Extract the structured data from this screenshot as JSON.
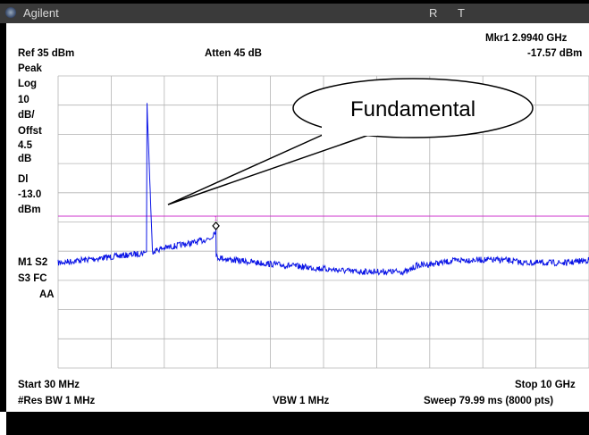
{
  "titlebar": {
    "app_name": "Agilent",
    "indicator_r": "R",
    "indicator_t": "T"
  },
  "header": {
    "marker_label": "Mkr1  2.9940 GHz",
    "marker_value": "-17.57 dBm",
    "ref_level": "Ref 35 dBm",
    "attenuation": "Atten 45 dB"
  },
  "left_panel": {
    "detector": "Peak",
    "scale_type": "Log",
    "scale_value": "10",
    "scale_unit": "dB/",
    "offset_label": "Offst",
    "offset_value": "4.5",
    "offset_unit": "dB",
    "display_line_label": "Dl",
    "display_line_value": "-13.0",
    "display_line_unit": "dBm",
    "trace_row1": "M1  S2",
    "trace_row2": "S3  FC",
    "trace_row3": "AA"
  },
  "footer": {
    "start": "Start 30 MHz",
    "stop": "Stop 10 GHz",
    "res_bw": "#Res BW 1 MHz",
    "vbw": "VBW 1 MHz",
    "sweep": "Sweep 79.99 ms (8000 pts)"
  },
  "annotation": {
    "callout_text": "Fundamental"
  },
  "marker": {
    "number": "1"
  },
  "colors": {
    "trace": "#0a14e6",
    "display_line": "#cc33cc",
    "grid": "#b4b4b4",
    "titlebar": "#3a3a3a"
  },
  "chart_data": {
    "type": "line",
    "x_unit": "GHz",
    "y_unit": "dBm",
    "x_range": [
      0.03,
      10
    ],
    "y_range": [
      -65,
      35
    ],
    "display_line": -13.0,
    "marker": {
      "x": 2.994,
      "y": -17.57
    },
    "grid": true,
    "series": [
      {
        "x": [
          0.03,
          0.5,
          1.0,
          1.5,
          1.65,
          1.69,
          1.7,
          1.8,
          2.0,
          2.3,
          2.6,
          2.9,
          2.994,
          3.0,
          3.3,
          3.8,
          4.4,
          5.0,
          5.6,
          6.2,
          6.6,
          6.75,
          7.2,
          7.6,
          8.0,
          8.4,
          8.8,
          9.2,
          9.6,
          10.0
        ],
        "y": [
          -29,
          -28,
          -27,
          -26,
          -25.5,
          -25.2,
          25.5,
          -25,
          -24,
          -23,
          -22,
          -20.5,
          -17.57,
          -27,
          -28,
          -29,
          -30,
          -31,
          -32,
          -32,
          -32,
          -30,
          -29,
          -28,
          -28,
          -28,
          -29,
          -29,
          -29,
          -28
        ]
      }
    ]
  }
}
